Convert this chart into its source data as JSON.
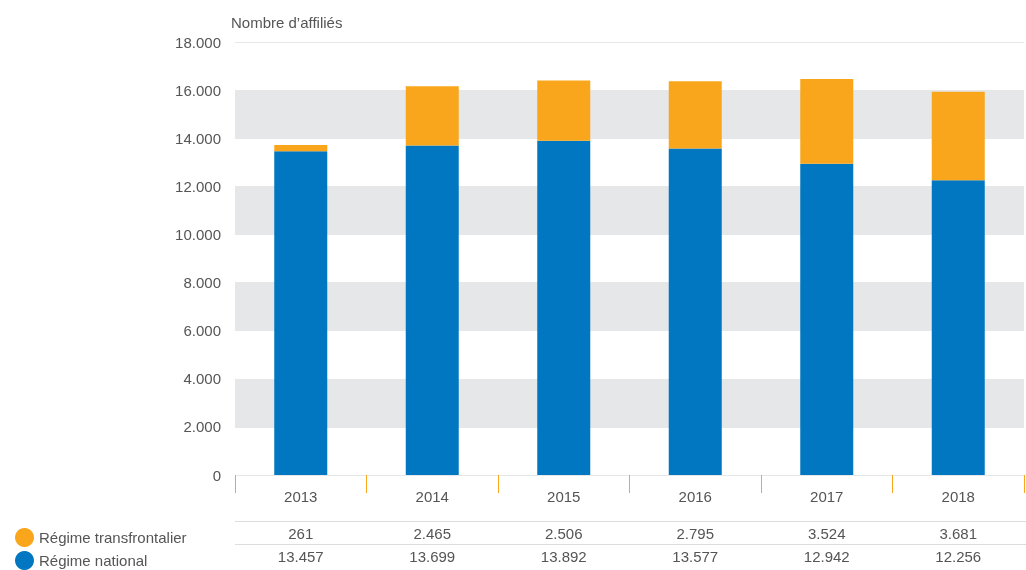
{
  "chart_data": {
    "type": "bar",
    "ylabel": "Nombre d’affiliés",
    "categories": [
      "2013",
      "2014",
      "2015",
      "2016",
      "2017",
      "2018"
    ],
    "series": [
      {
        "name": "Régime national",
        "color": "#0077c0",
        "values": [
          13457,
          13699,
          13892,
          13577,
          12942,
          12256
        ],
        "value_labels": [
          "13.457",
          "13.699",
          "13.892",
          "13.577",
          "12.942",
          "12.256"
        ]
      },
      {
        "name": "Régime transfrontalier",
        "color": "#f9a61c",
        "values": [
          261,
          2465,
          2506,
          2795,
          3524,
          3681
        ],
        "value_labels": [
          "261",
          "2.465",
          "2.506",
          "2.795",
          "3.524",
          "3.681"
        ]
      }
    ],
    "stacked": true,
    "grid": "y",
    "legend": "bottom left",
    "ylim": [
      0,
      18000
    ],
    "yticks": [
      0,
      {
        "value": 2000,
        "label": "2.000"
      },
      {
        "value": 4000,
        "label": "4.000"
      },
      {
        "value": 6000,
        "label": "6.000"
      },
      {
        "value": 8000,
        "label": "8.000"
      },
      {
        "value": 10000,
        "label": "10.000"
      },
      {
        "value": 12000,
        "label": "12.000"
      },
      {
        "value": 14000,
        "label": "14.000"
      },
      {
        "value": 16000,
        "label": "16.000"
      },
      {
        "value": 18000,
        "label": "18.000"
      }
    ]
  }
}
